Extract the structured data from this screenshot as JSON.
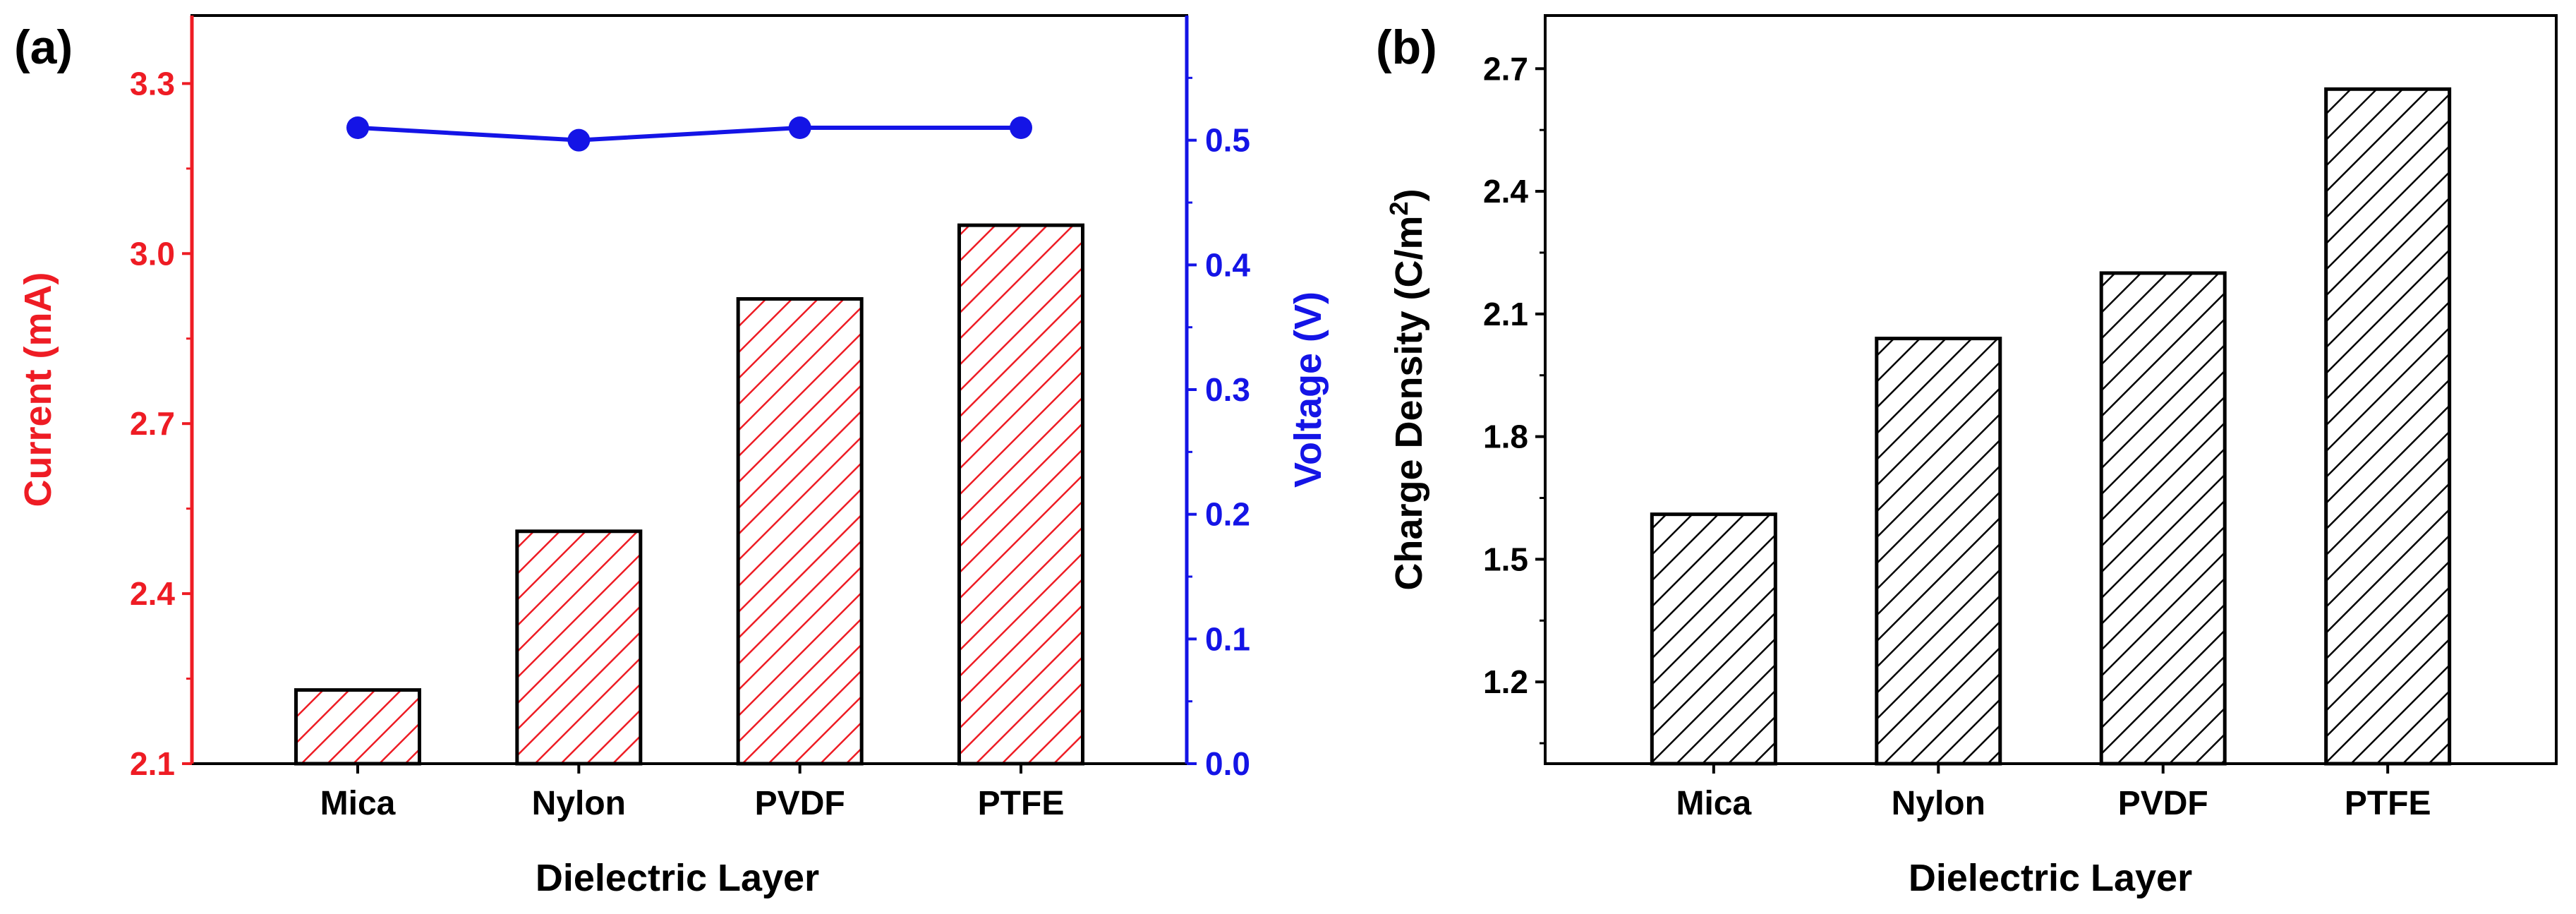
{
  "chart_data": [
    {
      "panel": "(a)",
      "type": "bar",
      "categories": [
        "Mica",
        "Nylon",
        "PVDF",
        "PTFE"
      ],
      "series": [
        {
          "name": "Current (mA)",
          "kind": "bar",
          "axis": "left",
          "values": [
            2.23,
            2.51,
            2.92,
            3.05
          ]
        },
        {
          "name": "Voltage (V)",
          "kind": "line",
          "axis": "right",
          "values": [
            0.51,
            0.5,
            0.51,
            0.51
          ]
        }
      ],
      "xlabel": "Dielectric Layer",
      "ylabel": "Current (mA)",
      "ylabel_right": "Voltage (V)",
      "ylim": [
        2.1,
        3.42
      ],
      "ylim_right": [
        0.0,
        0.6
      ],
      "yticks": [
        "2.1",
        "2.4",
        "2.7",
        "3.0",
        "3.3"
      ],
      "yticks_right": [
        "0.0",
        "0.1",
        "0.2",
        "0.3",
        "0.4",
        "0.5"
      ],
      "colors": {
        "left_axis": "#ee1c24",
        "right_axis": "#1414e6",
        "bar_edge": "#000000",
        "hatch": "#ee1c24"
      }
    },
    {
      "panel": "(b)",
      "type": "bar",
      "categories": [
        "Mica",
        "Nylon",
        "PVDF",
        "PTFE"
      ],
      "values": [
        1.61,
        2.04,
        2.2,
        2.65
      ],
      "xlabel": "Dielectric Layer",
      "ylabel": "Charge Density (C/m",
      "ylabel_sup": "2",
      "ylabel_end": ")",
      "ylim": [
        1.0,
        2.83
      ],
      "yticks": [
        "1.2",
        "1.5",
        "1.8",
        "2.1",
        "2.4",
        "2.7"
      ],
      "colors": {
        "axis": "#000000",
        "bar_edge": "#000000",
        "hatch": "#000000"
      }
    }
  ]
}
